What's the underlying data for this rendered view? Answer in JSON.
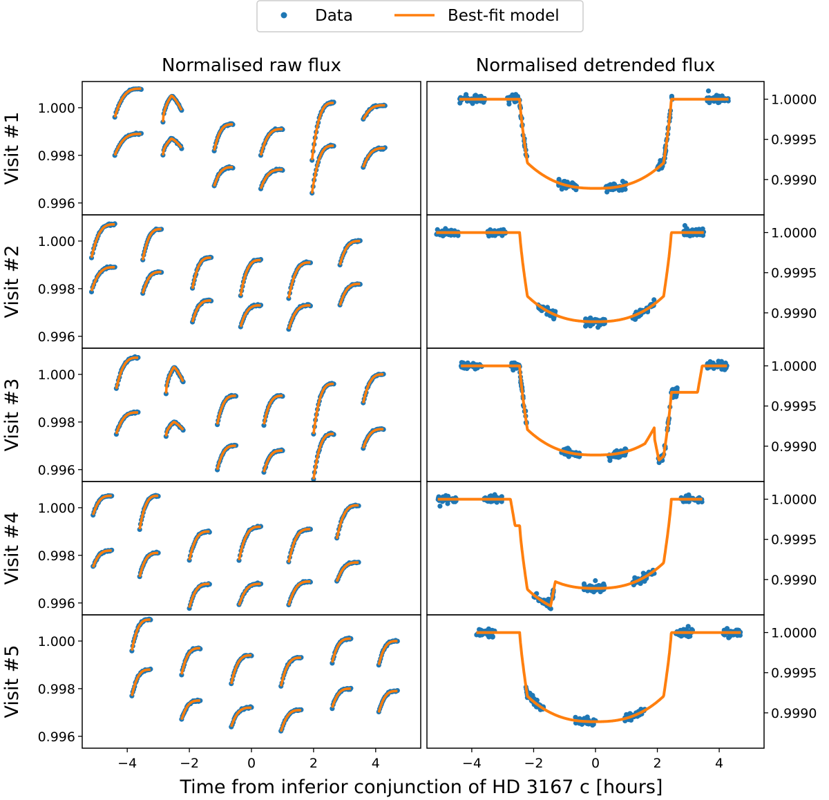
{
  "chart_data": {
    "type": "scatter",
    "legend": {
      "placement": "top-center",
      "entries": [
        {
          "label": "Data",
          "marker": "dot",
          "color": "#1f77b4"
        },
        {
          "label": "Best-fit model",
          "marker": "line",
          "color": "#ff7f0e"
        }
      ]
    },
    "columns": [
      {
        "title": "Normalised raw flux",
        "ylim": [
          0.9955,
          1.0011
        ],
        "yticks": [
          "1.000",
          "0.998",
          "0.996"
        ],
        "ytick_values": [
          1.0,
          0.998,
          0.996
        ],
        "yaxis_side": "left"
      },
      {
        "title": "Normalised detrended flux",
        "ylim": [
          0.99856,
          1.00022
        ],
        "yticks": [
          "1.0000",
          "0.9995",
          "0.9990"
        ],
        "ytick_values": [
          1.0,
          0.9995,
          0.999
        ],
        "yaxis_side": "right"
      }
    ],
    "xlabel": "Time from inferior conjunction of HD 3167 c [hours]",
    "xlim": [
      -5.45,
      5.45
    ],
    "xticks": [
      "−4",
      "−2",
      "0",
      "2",
      "4"
    ],
    "xtick_values": [
      -4,
      -2,
      0,
      2,
      4
    ],
    "transit_model": {
      "ingress_start": -2.45,
      "egress_end": 2.45,
      "duration_ingress": 0.25,
      "depth": 0.00111
    },
    "visits": [
      {
        "label": "Visit #1",
        "raw_orbits": [
          {
            "start": -4.4,
            "end": -3.55,
            "upper": [
              0.9996,
              1.0008
            ],
            "lower": [
              0.998,
              0.9989
            ]
          },
          {
            "start": -2.85,
            "end": -2.25,
            "upper": [
              0.9994,
              1.0005
            ],
            "lower": [
              0.998,
              0.9987
            ],
            "arc": true
          },
          {
            "start": -1.2,
            "end": -0.6,
            "upper": [
              0.9982,
              0.9993
            ],
            "lower": [
              0.9967,
              0.9975
            ]
          },
          {
            "start": 0.3,
            "end": 1.0,
            "upper": [
              0.998,
              0.9991
            ],
            "lower": [
              0.9966,
              0.9974
            ]
          },
          {
            "start": 1.95,
            "end": 2.65,
            "upper": [
              0.9978,
              1.0002
            ],
            "lower": [
              0.9964,
              0.9984
            ]
          },
          {
            "start": 3.6,
            "end": 4.3,
            "upper": [
              0.9995,
              1.0001
            ],
            "lower": [
              0.9975,
              0.9983
            ]
          }
        ],
        "detrended_segments": [
          [
            -4.4,
            -3.55
          ],
          [
            -2.85,
            -2.2
          ],
          [
            -1.2,
            -0.6
          ],
          [
            0.3,
            1.0
          ],
          [
            1.95,
            2.5
          ],
          [
            3.6,
            4.3
          ]
        ],
        "model_extras": []
      },
      {
        "label": "Visit #2",
        "raw_orbits": [
          {
            "start": -5.15,
            "end": -4.4,
            "upper": [
              0.9993,
              1.0007
            ],
            "lower": [
              0.9979,
              0.9989
            ]
          },
          {
            "start": -3.5,
            "end": -2.9,
            "upper": [
              0.9992,
              1.0005
            ],
            "lower": [
              0.9978,
              0.9987
            ]
          },
          {
            "start": -1.9,
            "end": -1.3,
            "upper": [
              0.998,
              0.9993
            ],
            "lower": [
              0.9966,
              0.9975
            ]
          },
          {
            "start": -0.35,
            "end": 0.3,
            "upper": [
              0.9977,
              0.9992
            ],
            "lower": [
              0.9964,
              0.9973
            ]
          },
          {
            "start": 1.2,
            "end": 1.9,
            "upper": [
              0.9976,
              0.9991
            ],
            "lower": [
              0.9963,
              0.9973
            ]
          },
          {
            "start": 2.85,
            "end": 3.5,
            "upper": [
              0.999,
              1.0
            ],
            "lower": [
              0.9973,
              0.9982
            ]
          }
        ],
        "detrended_segments": [
          [
            -5.15,
            -4.4
          ],
          [
            -3.5,
            -2.9
          ],
          [
            -1.9,
            -1.3
          ],
          [
            -0.35,
            0.3
          ],
          [
            1.2,
            1.9
          ],
          [
            2.85,
            3.5
          ]
        ],
        "model_extras": []
      },
      {
        "label": "Visit #3",
        "raw_orbits": [
          {
            "start": -4.35,
            "end": -3.65,
            "upper": [
              0.9994,
              1.0007
            ],
            "lower": [
              0.9975,
              0.9984
            ]
          },
          {
            "start": -2.75,
            "end": -2.2,
            "upper": [
              0.9992,
              1.0003
            ],
            "lower": [
              0.9974,
              0.998
            ],
            "arc": true
          },
          {
            "start": -1.1,
            "end": -0.5,
            "upper": [
              0.9979,
              0.9991
            ],
            "lower": [
              0.996,
              0.997
            ]
          },
          {
            "start": 0.4,
            "end": 1.0,
            "upper": [
              0.9979,
              0.9991
            ],
            "lower": [
              0.9959,
              0.9968
            ]
          },
          {
            "start": 2.0,
            "end": 2.65,
            "upper": [
              0.9975,
              0.9996
            ],
            "lower": [
              0.9956,
              0.9975
            ]
          },
          {
            "start": 3.6,
            "end": 4.25,
            "upper": [
              0.9988,
              1.0
            ],
            "lower": [
              0.9969,
              0.9977
            ]
          }
        ],
        "detrended_segments": [
          [
            -4.35,
            -3.65
          ],
          [
            -2.75,
            -2.2
          ],
          [
            -1.1,
            -0.5
          ],
          [
            0.4,
            1.0
          ],
          [
            2.0,
            2.65
          ],
          [
            3.6,
            4.25
          ]
        ],
        "model_extras": [
          "second_planet_egress"
        ]
      },
      {
        "label": "Visit #4",
        "raw_orbits": [
          {
            "start": -5.1,
            "end": -4.5,
            "upper": [
              0.9997,
              1.0005
            ],
            "lower": [
              0.9975,
              0.9982
            ]
          },
          {
            "start": -3.6,
            "end": -3.0,
            "upper": [
              0.9991,
              1.0005
            ],
            "lower": [
              0.9971,
              0.9981
            ]
          },
          {
            "start": -2.0,
            "end": -1.35,
            "upper": [
              0.9978,
              0.999
            ],
            "lower": [
              0.9958,
              0.9968
            ]
          },
          {
            "start": -0.4,
            "end": 0.3,
            "upper": [
              0.9978,
              0.9992
            ],
            "lower": [
              0.9959,
              0.9968
            ]
          },
          {
            "start": 1.2,
            "end": 1.9,
            "upper": [
              0.9977,
              0.9991
            ],
            "lower": [
              0.9959,
              0.9969
            ]
          },
          {
            "start": 2.75,
            "end": 3.45,
            "upper": [
              0.9987,
              1.0001
            ],
            "lower": [
              0.9969,
              0.9977
            ]
          }
        ],
        "detrended_segments": [
          [
            -5.1,
            -4.5
          ],
          [
            -3.6,
            -3.0
          ],
          [
            -2.0,
            -1.35
          ],
          [
            -0.4,
            0.3
          ],
          [
            1.2,
            1.9
          ],
          [
            2.75,
            3.45
          ]
        ],
        "model_extras": [
          "second_planet_early"
        ]
      },
      {
        "label": "Visit #5",
        "raw_orbits": [
          {
            "start": -3.85,
            "end": -3.25,
            "upper": [
              0.9996,
              1.0009
            ],
            "lower": [
              0.9977,
              0.9988
            ]
          },
          {
            "start": -2.25,
            "end": -1.65,
            "upper": [
              0.9986,
              0.9997
            ],
            "lower": [
              0.9967,
              0.9975
            ]
          },
          {
            "start": -0.65,
            "end": 0.0,
            "upper": [
              0.9982,
              0.9994
            ],
            "lower": [
              0.9964,
              0.9972
            ]
          },
          {
            "start": 0.95,
            "end": 1.6,
            "upper": [
              0.9981,
              0.9993
            ],
            "lower": [
              0.9962,
              0.9971
            ]
          },
          {
            "start": 2.6,
            "end": 3.2,
            "upper": [
              0.9991,
              1.0001
            ],
            "lower": [
              0.9972,
              0.998
            ]
          },
          {
            "start": 4.1,
            "end": 4.7,
            "upper": [
              0.999,
              1.0
            ],
            "lower": [
              0.997,
              0.9979
            ]
          }
        ],
        "detrended_segments": [
          [
            -3.85,
            -3.25
          ],
          [
            -2.25,
            -1.65
          ],
          [
            -0.65,
            0.0
          ],
          [
            0.95,
            1.6
          ],
          [
            2.6,
            3.2
          ],
          [
            4.1,
            4.7
          ]
        ],
        "model_extras": []
      }
    ]
  }
}
